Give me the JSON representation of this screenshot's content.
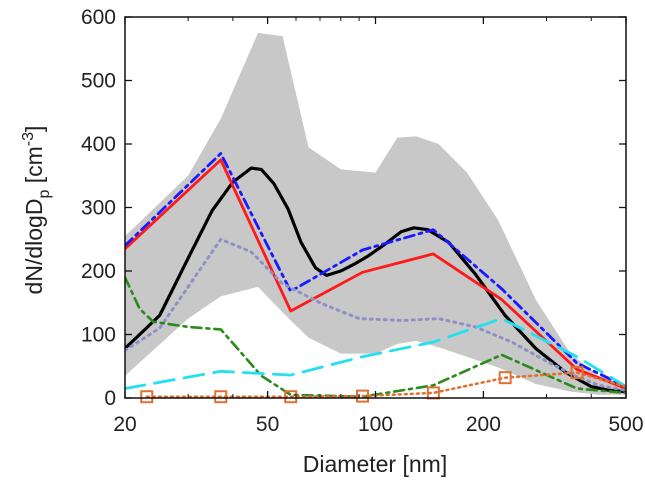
{
  "chart_data": {
    "type": "line",
    "title": "",
    "xlabel": "Diameter [nm]",
    "ylabel": "dN/dlogD",
    "ylabel_subscript": "p",
    "ylabel_unit": " [cm",
    "ylabel_unit_exp": "-3",
    "ylabel_unit_close": "]",
    "x_scale": "log",
    "xlim": [
      20,
      500
    ],
    "ylim": [
      0,
      600
    ],
    "xticks": [
      20,
      50,
      100,
      200,
      500
    ],
    "yticks": [
      0,
      100,
      200,
      300,
      400,
      500,
      600
    ],
    "grid": false,
    "legend": "none",
    "band": {
      "color": "#c8c8c8",
      "x": [
        20,
        30,
        37,
        47,
        55,
        65,
        80,
        100,
        115,
        130,
        150,
        180,
        220,
        280,
        350,
        420,
        500
      ],
      "upper": [
        255,
        350,
        440,
        575,
        570,
        395,
        360,
        355,
        410,
        412,
        400,
        355,
        280,
        155,
        70,
        35,
        20
      ],
      "lower": [
        35,
        125,
        160,
        175,
        135,
        95,
        70,
        70,
        85,
        90,
        80,
        65,
        48,
        22,
        10,
        5,
        5
      ]
    },
    "series": [
      {
        "color": "#000000",
        "dash": "solid",
        "width": 3.2,
        "x": [
          20,
          25,
          30,
          35,
          40,
          45,
          48,
          52,
          57,
          62,
          68,
          73,
          80,
          88,
          95,
          105,
          118,
          128,
          140,
          160,
          190,
          230,
          280,
          340,
          400,
          450,
          500
        ],
        "y": [
          78,
          130,
          220,
          295,
          340,
          362,
          360,
          338,
          298,
          245,
          205,
          193,
          200,
          212,
          223,
          240,
          262,
          268,
          265,
          245,
          195,
          130,
          78,
          40,
          18,
          12,
          10
        ]
      },
      {
        "color": "#ff1a1a",
        "dash": "solid",
        "width": 2.8,
        "x": [
          20,
          37,
          58,
          92,
          145,
          225,
          365,
          500
        ],
        "y": [
          235,
          375,
          137,
          198,
          227,
          155,
          45,
          15
        ]
      },
      {
        "color": "#1a1aff",
        "dash": "10,5,3,5",
        "width": 2.8,
        "x": [
          20,
          37,
          58,
          92,
          145,
          225,
          365,
          500
        ],
        "y": [
          240,
          385,
          168,
          233,
          265,
          172,
          55,
          18
        ]
      },
      {
        "color": "#9090c8",
        "dash": "2,5",
        "width": 3,
        "x": [
          20,
          25,
          30,
          37,
          45,
          55,
          70,
          90,
          120,
          150,
          190,
          240,
          300,
          360,
          420,
          500
        ],
        "y": [
          75,
          110,
          175,
          250,
          230,
          180,
          150,
          125,
          122,
          125,
          112,
          88,
          58,
          35,
          20,
          12
        ]
      },
      {
        "color": "#2a8a1a",
        "dash": "10,5,3,5",
        "width": 2.6,
        "x": [
          20,
          22,
          24,
          30,
          37,
          48,
          58,
          92,
          145,
          225,
          365,
          500
        ],
        "y": [
          190,
          140,
          120,
          112,
          108,
          35,
          5,
          2,
          20,
          68,
          15,
          8
        ]
      },
      {
        "color": "#22e0f0",
        "dash": "20,10",
        "width": 2.8,
        "x": [
          20,
          37,
          58,
          92,
          145,
          225,
          365,
          500
        ],
        "y": [
          15,
          42,
          36,
          65,
          88,
          125,
          65,
          18
        ]
      },
      {
        "color": "#e07030",
        "dash": "2,4",
        "width": 2.5,
        "marker": "square",
        "x": [
          23,
          37,
          58,
          92,
          145,
          230,
          365,
          500
        ],
        "y": [
          2,
          2,
          2,
          3,
          8,
          32,
          40,
          18
        ]
      }
    ]
  }
}
